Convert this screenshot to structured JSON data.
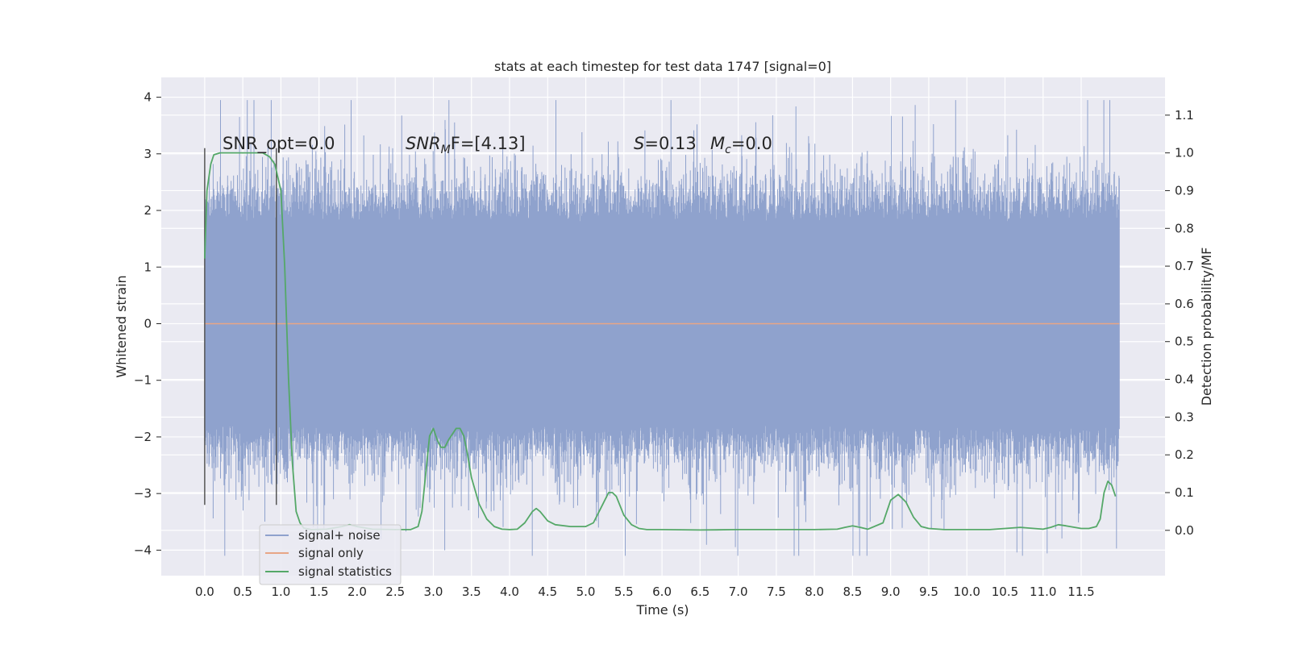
{
  "chart_data": {
    "type": "line",
    "title": "stats at each timestep for test data 1747 [signal=0]",
    "xlabel": "Time (s)",
    "ylabel_left": "Whitened strain",
    "ylabel_right": "Detection probability/MF",
    "xlim": [
      -0.57,
      12.6
    ],
    "ylim_left": [
      -4.45,
      4.35
    ],
    "ylim_right": [
      -0.12,
      1.2
    ],
    "x_ticks": [
      0.0,
      0.5,
      1.0,
      1.5,
      2.0,
      2.5,
      3.0,
      3.5,
      4.0,
      4.5,
      5.0,
      5.5,
      6.0,
      6.5,
      7.0,
      7.5,
      8.0,
      8.5,
      9.0,
      9.5,
      10.0,
      10.5,
      11.0,
      11.5
    ],
    "x_tick_labels": [
      "0.0",
      "0.5",
      "1.0",
      "1.5",
      "2.0",
      "2.5",
      "3.0",
      "3.5",
      "4.0",
      "4.5",
      "5.0",
      "5.5",
      "6.0",
      "6.5",
      "7.0",
      "7.5",
      "8.0",
      "8.5",
      "9.0",
      "9.5",
      "10.0",
      "10.5",
      "11.0",
      "11.5"
    ],
    "y_left_ticks": [
      4,
      3,
      2,
      1,
      0,
      -1,
      -2,
      -3,
      -4
    ],
    "y_left_tick_labels": [
      "4",
      "3",
      "2",
      "1",
      "0",
      "−1",
      "−2",
      "−3",
      "−4"
    ],
    "y_right_ticks": [
      1.1,
      1.0,
      0.9,
      0.8,
      0.7,
      0.6,
      0.5,
      0.4,
      0.3,
      0.2,
      0.1,
      0.0
    ],
    "y_right_tick_labels": [
      "1.1",
      "1.0",
      "0.9",
      "0.8",
      "0.7",
      "0.6",
      "0.5",
      "0.4",
      "0.3",
      "0.2",
      "0.1",
      "0.0"
    ],
    "grid": true,
    "legend_position": "lower-left",
    "annotations": {
      "snr_opt": "SNR_opt=0.0",
      "snr_mf_symbol": "SNR",
      "snr_mf_sub": "M",
      "snr_mf_rest": "F=[4.13]",
      "s_symbol": "S",
      "s_value": "=0.13",
      "mc_symbol": "M",
      "mc_sub": "c",
      "mc_value": "=0.0"
    },
    "vertical_lines_x": [
      0.0,
      0.94
    ],
    "vertical_lines_ylim": [
      -3.2,
      3.1
    ],
    "series": [
      {
        "name": "signal+ noise",
        "axis": "left",
        "color": "#8fa2cd",
        "style": "dense-noise",
        "x_range": [
          0.0,
          12.0
        ],
        "typical_envelope": [
          -1.8,
          1.8
        ],
        "max": 3.95,
        "min": -4.1
      },
      {
        "name": "signal only",
        "axis": "left",
        "color": "#e8a686",
        "x": [
          0.0,
          12.0
        ],
        "y": [
          0.0,
          0.0
        ]
      },
      {
        "name": "signal statistics",
        "axis": "right",
        "color": "#55a868",
        "x": [
          0.0,
          0.03,
          0.08,
          0.12,
          0.2,
          0.3,
          0.5,
          0.7,
          0.76,
          0.85,
          0.92,
          1.0,
          1.05,
          1.1,
          1.15,
          1.2,
          1.25,
          1.3,
          1.4,
          1.6,
          1.8,
          1.9,
          2.0,
          2.2,
          2.5,
          2.7,
          2.8,
          2.85,
          2.9,
          2.95,
          3.0,
          3.05,
          3.1,
          3.15,
          3.2,
          3.3,
          3.35,
          3.4,
          3.45,
          3.5,
          3.6,
          3.7,
          3.8,
          3.9,
          4.0,
          4.1,
          4.2,
          4.3,
          4.35,
          4.4,
          4.5,
          4.6,
          4.8,
          5.0,
          5.1,
          5.2,
          5.3,
          5.35,
          5.4,
          5.5,
          5.6,
          5.7,
          5.8,
          6.0,
          6.5,
          7.0,
          7.5,
          8.0,
          8.3,
          8.4,
          8.5,
          8.6,
          8.7,
          8.9,
          9.0,
          9.1,
          9.2,
          9.3,
          9.4,
          9.5,
          9.7,
          10.0,
          10.3,
          10.7,
          11.0,
          11.1,
          11.2,
          11.3,
          11.5,
          11.6,
          11.7,
          11.75,
          11.8,
          11.85,
          11.9,
          11.95
        ],
        "y": [
          0.72,
          0.9,
          0.97,
          0.995,
          1.0,
          1.0,
          1.0,
          1.0,
          1.0,
          0.99,
          0.97,
          0.9,
          0.7,
          0.4,
          0.18,
          0.05,
          0.02,
          0.006,
          0.002,
          0.003,
          0.01,
          0.015,
          0.01,
          0.003,
          0.002,
          0.002,
          0.01,
          0.05,
          0.15,
          0.25,
          0.27,
          0.24,
          0.22,
          0.22,
          0.24,
          0.27,
          0.27,
          0.25,
          0.2,
          0.14,
          0.07,
          0.03,
          0.01,
          0.003,
          0.002,
          0.003,
          0.02,
          0.05,
          0.058,
          0.05,
          0.025,
          0.015,
          0.01,
          0.01,
          0.02,
          0.06,
          0.1,
          0.1,
          0.09,
          0.04,
          0.015,
          0.005,
          0.002,
          0.002,
          0.001,
          0.002,
          0.002,
          0.002,
          0.003,
          0.008,
          0.012,
          0.008,
          0.003,
          0.02,
          0.08,
          0.095,
          0.075,
          0.035,
          0.01,
          0.005,
          0.002,
          0.002,
          0.002,
          0.008,
          0.003,
          0.008,
          0.015,
          0.012,
          0.005,
          0.005,
          0.01,
          0.03,
          0.1,
          0.13,
          0.12,
          0.09
        ]
      }
    ]
  }
}
